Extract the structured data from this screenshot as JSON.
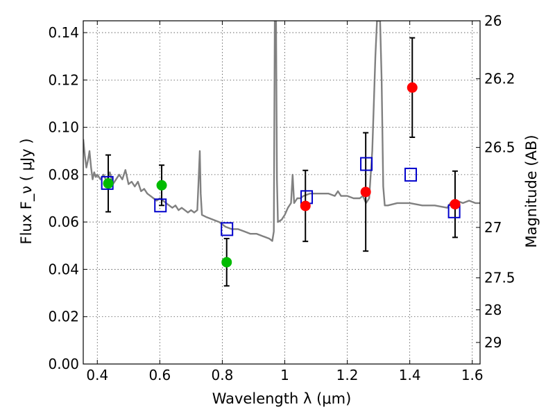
{
  "chart_data": {
    "type": "scatter",
    "xlabel": "Wavelength  λ (μm)",
    "ylabel": "Flux  F_ν  ( μJy )",
    "ylabel_right": "Magnitude (AB)",
    "xlim": [
      0.355,
      1.625
    ],
    "ylim": [
      0.0,
      0.145
    ],
    "x_ticks": [
      0.4,
      0.6,
      0.8,
      1.0,
      1.2,
      1.4,
      1.6
    ],
    "x_tick_labels": [
      "0.4",
      "0.6",
      "0.8",
      "1",
      "1.2",
      "1.4",
      "1.6"
    ],
    "y_ticks": [
      0.0,
      0.02,
      0.04,
      0.06,
      0.08,
      0.1,
      0.12,
      0.14
    ],
    "y_tick_labels": [
      "0.00",
      "0.02",
      "0.04",
      "0.06",
      "0.08",
      "0.10",
      "0.12",
      "0.14"
    ],
    "right_ticks": [
      {
        "label": "26",
        "flux": 0.145
      },
      {
        "label": "26.2",
        "flux": 0.1205
      },
      {
        "label": "26.5",
        "flux": 0.0915
      },
      {
        "label": "27",
        "flux": 0.0577
      },
      {
        "label": "27.5",
        "flux": 0.0364
      },
      {
        "label": "28",
        "flux": 0.0229
      },
      {
        "label": "29",
        "flux": 0.0091
      }
    ],
    "grid": true,
    "colors": {
      "model": "#808080",
      "green_points": "#00bb00",
      "red_points": "#ff0000",
      "model_photometry": "#0000cc",
      "error_bars": "#000000"
    },
    "series": [
      {
        "marker": "circle-green",
        "points": [
          {
            "x": 0.435,
            "y": 0.0763,
            "yerr": 0.012
          },
          {
            "x": 0.606,
            "y": 0.0755,
            "yerr": 0.0085
          },
          {
            "x": 0.814,
            "y": 0.043,
            "yerr": 0.01
          }
        ]
      },
      {
        "marker": "circle-red",
        "points": [
          {
            "x": 1.066,
            "y": 0.0668,
            "yerr": 0.015
          },
          {
            "x": 1.259,
            "y": 0.0727,
            "yerr": 0.025
          },
          {
            "x": 1.408,
            "y": 0.1168,
            "yerr": 0.021
          },
          {
            "x": 1.545,
            "y": 0.0675,
            "yerr": 0.014
          }
        ]
      },
      {
        "marker": "square-blue",
        "points": [
          {
            "x": 0.432,
            "y": 0.0765
          },
          {
            "x": 0.602,
            "y": 0.067
          },
          {
            "x": 0.815,
            "y": 0.057
          },
          {
            "x": 1.07,
            "y": 0.0705
          },
          {
            "x": 1.261,
            "y": 0.0845
          },
          {
            "x": 1.403,
            "y": 0.08
          },
          {
            "x": 1.542,
            "y": 0.0645
          }
        ]
      },
      {
        "type": "line",
        "marker": "model-spectrum",
        "points": [
          [
            0.355,
            0.095
          ],
          [
            0.36,
            0.088
          ],
          [
            0.365,
            0.083
          ],
          [
            0.37,
            0.086
          ],
          [
            0.375,
            0.09
          ],
          [
            0.38,
            0.083
          ],
          [
            0.385,
            0.078
          ],
          [
            0.39,
            0.081
          ],
          [
            0.395,
            0.079
          ],
          [
            0.4,
            0.08
          ],
          [
            0.41,
            0.078
          ],
          [
            0.42,
            0.08
          ],
          [
            0.43,
            0.077
          ],
          [
            0.44,
            0.081
          ],
          [
            0.45,
            0.076
          ],
          [
            0.46,
            0.078
          ],
          [
            0.47,
            0.08
          ],
          [
            0.48,
            0.078
          ],
          [
            0.49,
            0.082
          ],
          [
            0.5,
            0.076
          ],
          [
            0.51,
            0.077
          ],
          [
            0.52,
            0.075
          ],
          [
            0.53,
            0.077
          ],
          [
            0.54,
            0.073
          ],
          [
            0.55,
            0.074
          ],
          [
            0.56,
            0.072
          ],
          [
            0.57,
            0.071
          ],
          [
            0.58,
            0.07
          ],
          [
            0.59,
            0.069
          ],
          [
            0.6,
            0.07
          ],
          [
            0.61,
            0.069
          ],
          [
            0.62,
            0.068
          ],
          [
            0.63,
            0.067
          ],
          [
            0.64,
            0.066
          ],
          [
            0.65,
            0.067
          ],
          [
            0.66,
            0.065
          ],
          [
            0.67,
            0.066
          ],
          [
            0.68,
            0.065
          ],
          [
            0.69,
            0.064
          ],
          [
            0.7,
            0.065
          ],
          [
            0.71,
            0.064
          ],
          [
            0.72,
            0.065
          ],
          [
            0.725,
            0.08
          ],
          [
            0.728,
            0.09
          ],
          [
            0.731,
            0.072
          ],
          [
            0.735,
            0.063
          ],
          [
            0.75,
            0.062
          ],
          [
            0.77,
            0.061
          ],
          [
            0.79,
            0.06
          ],
          [
            0.81,
            0.058
          ],
          [
            0.83,
            0.057
          ],
          [
            0.85,
            0.057
          ],
          [
            0.87,
            0.056
          ],
          [
            0.89,
            0.055
          ],
          [
            0.91,
            0.055
          ],
          [
            0.93,
            0.054
          ],
          [
            0.95,
            0.053
          ],
          [
            0.96,
            0.052
          ],
          [
            0.965,
            0.056
          ],
          [
            0.968,
            0.145
          ],
          [
            0.972,
            0.145
          ],
          [
            0.975,
            0.078
          ],
          [
            0.978,
            0.06
          ],
          [
            0.99,
            0.061
          ],
          [
            1.0,
            0.063
          ],
          [
            1.01,
            0.066
          ],
          [
            1.02,
            0.068
          ],
          [
            1.025,
            0.08
          ],
          [
            1.03,
            0.068
          ],
          [
            1.04,
            0.07
          ],
          [
            1.05,
            0.07
          ],
          [
            1.06,
            0.071
          ],
          [
            1.08,
            0.072
          ],
          [
            1.1,
            0.072
          ],
          [
            1.12,
            0.072
          ],
          [
            1.14,
            0.072
          ],
          [
            1.16,
            0.071
          ],
          [
            1.17,
            0.073
          ],
          [
            1.18,
            0.071
          ],
          [
            1.2,
            0.071
          ],
          [
            1.22,
            0.07
          ],
          [
            1.24,
            0.07
          ],
          [
            1.25,
            0.071
          ],
          [
            1.26,
            0.068
          ],
          [
            1.27,
            0.07
          ],
          [
            1.28,
            0.09
          ],
          [
            1.29,
            0.13
          ],
          [
            1.295,
            0.145
          ],
          [
            1.305,
            0.145
          ],
          [
            1.31,
            0.12
          ],
          [
            1.315,
            0.075
          ],
          [
            1.32,
            0.067
          ],
          [
            1.33,
            0.067
          ],
          [
            1.36,
            0.068
          ],
          [
            1.4,
            0.068
          ],
          [
            1.44,
            0.067
          ],
          [
            1.48,
            0.067
          ],
          [
            1.52,
            0.066
          ],
          [
            1.53,
            0.068
          ],
          [
            1.55,
            0.069
          ],
          [
            1.57,
            0.068
          ],
          [
            1.59,
            0.069
          ],
          [
            1.61,
            0.068
          ],
          [
            1.625,
            0.068
          ]
        ]
      }
    ]
  }
}
